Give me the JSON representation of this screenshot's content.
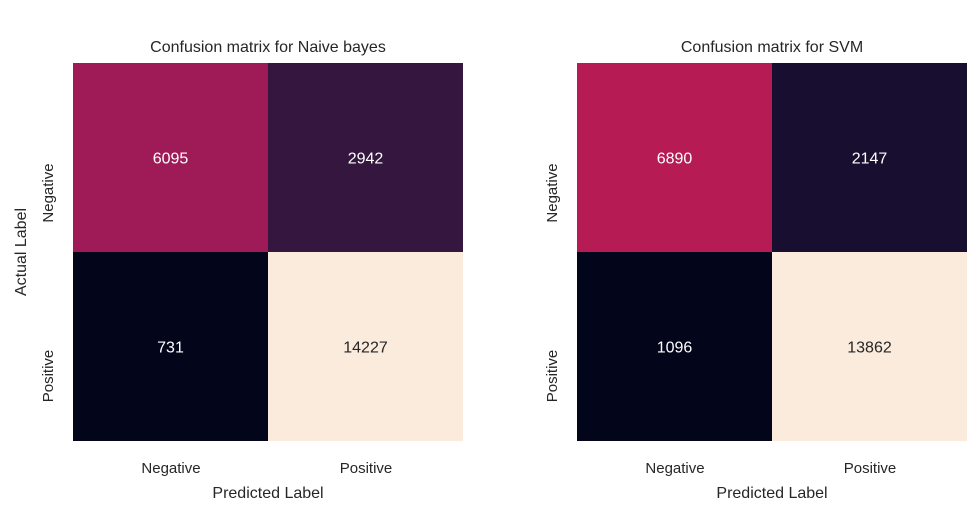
{
  "chart_data": [
    {
      "type": "heatmap",
      "title": "Confusion matrix for Naive bayes",
      "xlabel": "Predicted Label",
      "ylabel": "Actual Label",
      "x_categories": [
        "Negative",
        "Positive"
      ],
      "y_categories": [
        "Negative",
        "Positive"
      ],
      "values": [
        [
          6095,
          2942
        ],
        [
          731,
          14227
        ]
      ],
      "colorbar": false
    },
    {
      "type": "heatmap",
      "title": "Confusion matrix for SVM",
      "xlabel": "Predicted Label",
      "ylabel": "",
      "x_categories": [
        "Negative",
        "Positive"
      ],
      "y_categories": [
        "Negative",
        "Positive"
      ],
      "values": [
        [
          6890,
          2147
        ],
        [
          1096,
          13862
        ]
      ],
      "colorbar": false
    }
  ],
  "colors": {
    "colormap": "rocket",
    "annotation_text": "#ffffff"
  }
}
